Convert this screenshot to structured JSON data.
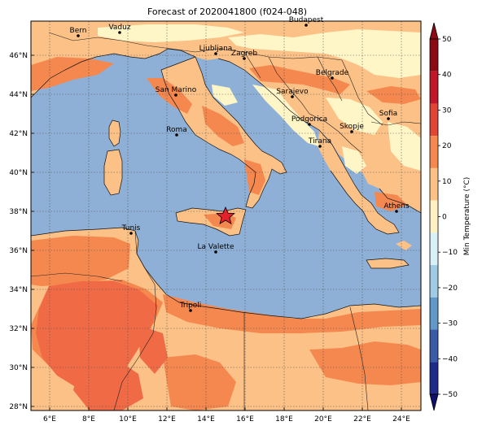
{
  "title": "Forecast of 2020041800 (f024-048)",
  "colorbar": {
    "label": "Min Temperature (°C)",
    "ticks": [
      "50",
      "40",
      "30",
      "20",
      "10",
      "0",
      "−10",
      "−20",
      "−30",
      "−40",
      "−50"
    ],
    "colors": [
      "#8b0a14",
      "#c0182a",
      "#e04535",
      "#f5884f",
      "#fcc186",
      "#fff2c2",
      "#d8f0f8",
      "#9fcbe4",
      "#6098c8",
      "#3a5ba8",
      "#1f2a8a"
    ]
  },
  "axes": {
    "lat_labels": [
      "46°N",
      "44°N",
      "42°N",
      "40°N",
      "38°N",
      "36°N",
      "34°N",
      "32°N",
      "30°N",
      "28°N"
    ],
    "lon_labels": [
      "6°E",
      "8°E",
      "10°E",
      "12°E",
      "14°E",
      "16°E",
      "18°E",
      "20°E",
      "22°E",
      "24°E"
    ]
  },
  "colors": {
    "sea": "#8fb0d6",
    "band_10_20": "#fcc186",
    "band_20_30": "#f5884f",
    "band_30_40": "#ef6a45",
    "band_0_10": "#fff6c8"
  },
  "marker": {
    "icon": "red-star-icon",
    "color": "#e4202b"
  },
  "cities": [
    {
      "name": "Bern"
    },
    {
      "name": "Vaduz"
    },
    {
      "name": "Budapest"
    },
    {
      "name": "Ljubljana"
    },
    {
      "name": "Zagreb"
    },
    {
      "name": "Belgrade"
    },
    {
      "name": "San Marino"
    },
    {
      "name": "Sarajevo"
    },
    {
      "name": "Sofia"
    },
    {
      "name": "Podgorica"
    },
    {
      "name": "Skopje"
    },
    {
      "name": "Roma"
    },
    {
      "name": "Tirana"
    },
    {
      "name": "Athens"
    },
    {
      "name": "Tunis"
    },
    {
      "name": "La Valette"
    },
    {
      "name": "Tripoli"
    }
  ]
}
